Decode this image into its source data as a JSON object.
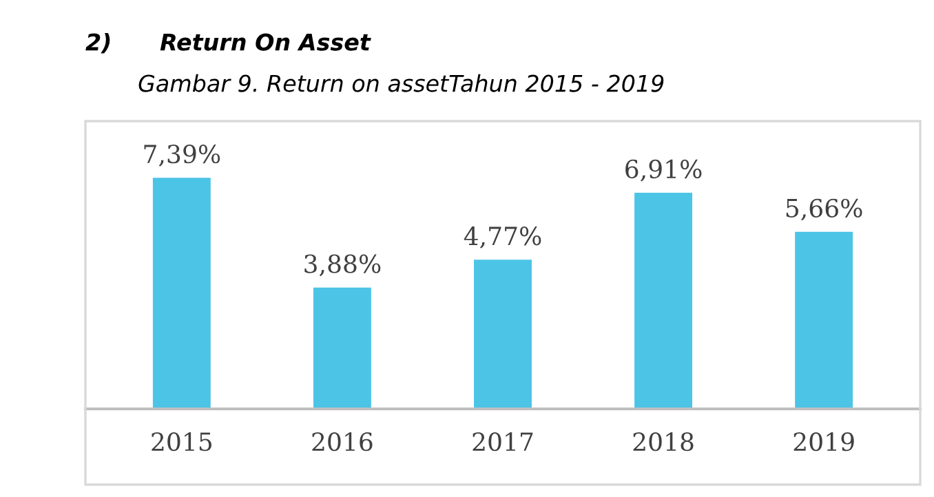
{
  "chart_data": {
    "type": "bar",
    "title": "2)      Return On Asset",
    "subtitle": "Gambar 9. Return on assetTahun 2015 - 2019",
    "categories": [
      "2015",
      "2016",
      "2017",
      "2018",
      "2019"
    ],
    "values": [
      7.39,
      3.88,
      4.77,
      6.91,
      5.66
    ],
    "value_labels": [
      "7,39%",
      "3,88%",
      "4,77%",
      "6,91%",
      "5,66%"
    ],
    "color": "#4cc4e6",
    "ylim": [
      0,
      9.2
    ],
    "grid": false,
    "legend": false,
    "tick_labels": "x"
  }
}
